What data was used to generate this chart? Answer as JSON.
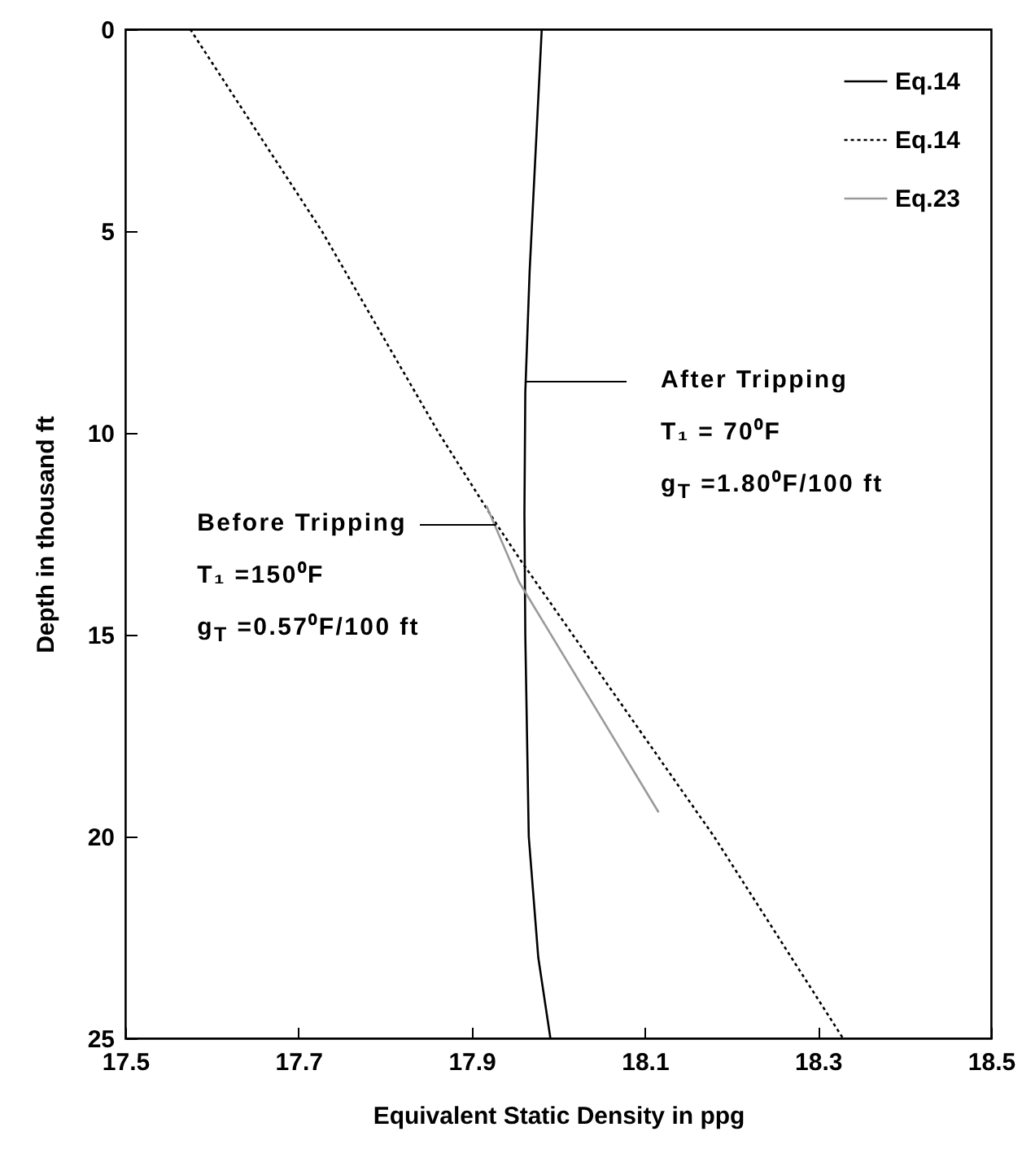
{
  "chart_data": {
    "type": "line",
    "xlabel": "Equivalent Static Density in ppg",
    "ylabel": "Depth in thousand ft",
    "xlim": [
      17.5,
      18.5
    ],
    "xticks": [
      17.5,
      17.7,
      17.9,
      18.1,
      18.3,
      18.5
    ],
    "ylim": [
      25,
      0
    ],
    "yticks": [
      0,
      5,
      10,
      15,
      20,
      25
    ],
    "grid": false,
    "legend": "top right",
    "marker": "none",
    "series": [
      {
        "name": "Eq.14",
        "color": "#000000",
        "line_style": "solid",
        "x": [
          17.981,
          17.974,
          17.967,
          17.962,
          17.961,
          17.962,
          17.966,
          17.977,
          17.991
        ],
        "values": [
          0,
          3,
          6,
          9,
          12,
          15,
          20,
          23,
          25
        ]
      },
      {
        "name": "Eq.14",
        "color": "#000000",
        "line_style": "dotted",
        "x": [
          17.575,
          17.727,
          17.862,
          17.93,
          17.958,
          18.18,
          18.329
        ],
        "values": [
          0,
          5,
          10,
          12.3,
          13.2,
          20,
          25
        ]
      },
      {
        "name": "Eq.23",
        "color": "#9a9a9a",
        "line_style": "solid",
        "x": [
          17.917,
          17.955,
          18.116
        ],
        "values": [
          11.8,
          13.7,
          19.4
        ]
      }
    ],
    "annotations": [
      "After Tripping\nT₁ = 70⁰F\ng$_{T}$ =1.80⁰F/100 ft",
      "Before Tripping\nT₁ =150⁰F\ng$_{T}$ =0.57⁰F/100 ft"
    ]
  }
}
